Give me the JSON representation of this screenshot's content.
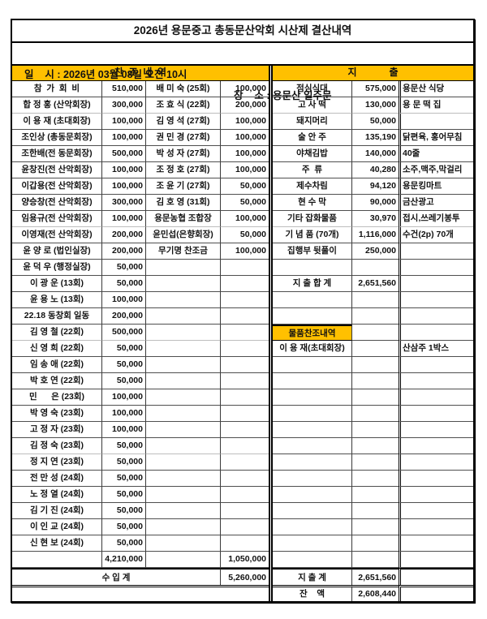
{
  "title": "2026년 용문중고 총동문산악회 시산제 결산내역",
  "meta": {
    "datetime": "일    시 : 2026년 03월 08일 오전 10시",
    "place": "장    소 : 용문산 일주문"
  },
  "colors": {
    "accent_gold": "#FFC000"
  },
  "donations": {
    "header": "찬  조  내  역",
    "rows": [
      [
        "참  가  회  비",
        "510,000",
        "배 미 숙 (25회)",
        "100,000",
        ""
      ],
      [
        "합 정 홍 (산악회장)",
        "300,000",
        "조 효 식 (22회)",
        "200,000",
        "l"
      ],
      [
        "이 용 재 (초대회장)",
        "100,000",
        "김 영 석 (27회)",
        "100,000",
        ""
      ],
      [
        "조인상 (총동문회장)",
        "100,000",
        "권 민 경 (27회)",
        "100,000",
        ""
      ],
      [
        "조한배(전 동문회장)",
        "500,000",
        "박 성 자 (27회)",
        "100,000",
        ""
      ],
      [
        "윤창진(전 산악회장)",
        "100,000",
        "조 정 호 (27회)",
        "100,000",
        ""
      ],
      [
        "이갑용(전 산악회장)",
        "100,000",
        "조 윤 기 (27회)",
        "50,000",
        ""
      ],
      [
        "양승창(전 산악회장)",
        "300,000",
        "김 호 영 (31회)",
        "50,000",
        ""
      ],
      [
        "임용규(전 산악회장)",
        "100,000",
        "용문농협 조합장",
        "100,000",
        "l"
      ],
      [
        "이영재(전 산악회장)",
        "200,000",
        "윤민섭(은향회장)",
        "50,000",
        ""
      ],
      [
        "윤 양 로 (법인실장)",
        "200,000",
        "무기명 찬조금",
        "100,000",
        ""
      ],
      [
        "윤 덕 우 (행정실장)",
        "50,000",
        "",
        "",
        ""
      ],
      [
        "이 광 운 (13회)",
        "50,000",
        "",
        "",
        ""
      ],
      [
        "윤 용 노 (13회)",
        "100,000",
        "",
        "",
        ""
      ],
      [
        "22.18 동창회 일동",
        "200,000",
        "",
        "",
        ""
      ],
      [
        "김 영 철 (22회)",
        "500,000",
        "",
        "",
        "l"
      ],
      [
        "신 영 희 (22회)",
        "50,000",
        "",
        "",
        ""
      ],
      [
        "임 송 애 (22회)",
        "50,000",
        "",
        "",
        ""
      ],
      [
        "박 호 연 (22회)",
        "50,000",
        "",
        "",
        ""
      ],
      [
        "민      은 (23회)",
        "100,000",
        "",
        "",
        ""
      ],
      [
        "박 영 숙 (23회)",
        "100,000",
        "",
        "",
        ""
      ],
      [
        "고 정 자 (23회)",
        "100,000",
        "",
        "",
        ""
      ],
      [
        "김 정 숙 (23회)",
        "50,000",
        "",
        "",
        "l"
      ],
      [
        "정 지 연 (23회)",
        "50,000",
        "",
        "",
        ""
      ],
      [
        "전 만 성 (24회)",
        "50,000",
        "",
        "",
        ""
      ],
      [
        "노 정 열 (24회)",
        "50,000",
        "",
        "",
        ""
      ],
      [
        "김 기 진 (24회)",
        "50,000",
        "",
        "",
        ""
      ],
      [
        "이 인 교 (24회)",
        "50,000",
        "",
        "",
        ""
      ],
      [
        "신 현 보 (24회)",
        "50,000",
        "",
        "",
        ""
      ],
      [
        "",
        "4,210,000",
        "",
        "1,050,000",
        ""
      ]
    ],
    "total_label": "수 입 계",
    "total": "5,260,000"
  },
  "expenses": {
    "header": "지            출",
    "rows": [
      [
        "점심식대",
        "575,000",
        "용문산 식당",
        ""
      ],
      [
        "고 사 떡",
        "130,000",
        "용 문 떡 집",
        "l"
      ],
      [
        "돼지머리",
        "50,000",
        "",
        ""
      ],
      [
        "술 안 주",
        "135,190",
        "닭편육, 홍어무침",
        ""
      ],
      [
        "야채김밥",
        "140,000",
        "40줄",
        ""
      ],
      [
        "주  류",
        "40,280",
        "소주,맥주,막걸리",
        ""
      ],
      [
        "제수차림",
        "94,120",
        "용문킹마트",
        ""
      ],
      [
        "현 수 막",
        "90,000",
        "금산광고",
        ""
      ],
      [
        "기타 잡화물품",
        "30,970",
        "접시,쓰레기봉투",
        "l"
      ],
      [
        "기 념 품 (70개)",
        "1,116,000",
        "수건(2p) 70개",
        ""
      ],
      [
        "집행부 뒷풀이",
        "250,000",
        "",
        ""
      ],
      [
        "",
        "",
        "",
        ""
      ],
      [
        "지 출 합 계",
        "2,651,560",
        "",
        ""
      ],
      [
        "",
        "",
        "",
        ""
      ],
      [
        "",
        "",
        "",
        ""
      ],
      [
        "물품찬조내역",
        "",
        "",
        "g"
      ],
      [
        "이 용 재(초대회장)",
        "",
        "산삼주 1박스",
        ""
      ],
      [
        "",
        "",
        "",
        ""
      ],
      [
        "",
        "",
        "",
        ""
      ],
      [
        "",
        "",
        "",
        ""
      ],
      [
        "",
        "",
        "",
        ""
      ],
      [
        "",
        "",
        "",
        ""
      ],
      [
        "",
        "",
        "",
        ""
      ],
      [
        "",
        "",
        "",
        ""
      ],
      [
        "",
        "",
        "",
        ""
      ],
      [
        "",
        "",
        "",
        ""
      ],
      [
        "",
        "",
        "",
        ""
      ],
      [
        "",
        "",
        "",
        ""
      ],
      [
        "",
        "",
        "",
        ""
      ],
      [
        "",
        "",
        "",
        ""
      ]
    ],
    "total_label": "지 출 계",
    "total": "2,651,560",
    "balance_label": "잔    액",
    "balance": "2,608,440"
  }
}
